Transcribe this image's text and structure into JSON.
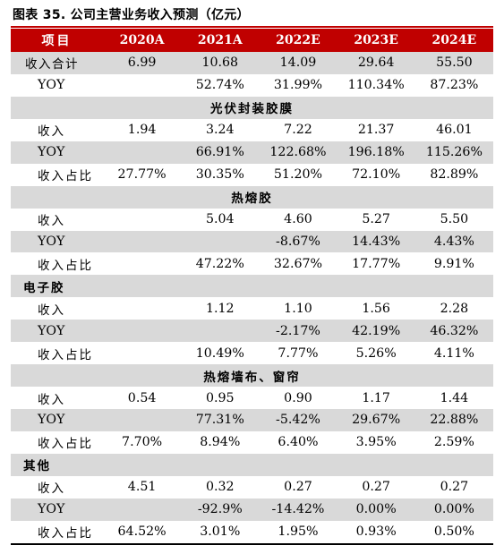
{
  "caption": "图表 35. 公司主营业务收入预测（亿元）",
  "header": [
    "项目",
    "2020A",
    "2021A",
    "2022E",
    "2023E",
    "2024E"
  ],
  "rows": [
    {
      "label": "收入合计",
      "values": [
        "6.99",
        "10.68",
        "14.09",
        "29.64",
        "55.50"
      ]
    },
    {
      "label": "YOY",
      "values": [
        "",
        "52.74%",
        "31.99%",
        "110.34%",
        "87.23%"
      ]
    },
    {
      "section": "光伏封装胶膜"
    },
    {
      "label": "收入",
      "values": [
        "1.94",
        "3.24",
        "7.22",
        "21.37",
        "46.01"
      ]
    },
    {
      "label": "YOY",
      "values": [
        "",
        "66.91%",
        "122.68%",
        "196.18%",
        "115.26%"
      ]
    },
    {
      "label": "收入占比",
      "values": [
        "27.77%",
        "30.35%",
        "51.20%",
        "72.10%",
        "82.89%"
      ]
    },
    {
      "section": "热熔胶"
    },
    {
      "label": "收入",
      "values": [
        "",
        "5.04",
        "4.60",
        "5.27",
        "5.50"
      ]
    },
    {
      "label": "YOY",
      "values": [
        "",
        "",
        "-8.67%",
        "14.43%",
        "4.43%"
      ]
    },
    {
      "label": "收入占比",
      "values": [
        "",
        "47.22%",
        "32.67%",
        "17.77%",
        "9.91%"
      ]
    },
    {
      "section": "电子胶"
    },
    {
      "label": "收入",
      "values": [
        "",
        "1.12",
        "1.10",
        "1.56",
        "2.28"
      ]
    },
    {
      "label": "YOY",
      "values": [
        "",
        "",
        "-2.17%",
        "42.19%",
        "46.32%"
      ]
    },
    {
      "label": "收入占比",
      "values": [
        "",
        "10.49%",
        "7.77%",
        "5.26%",
        "4.11%"
      ]
    },
    {
      "section": "热熔墙布、窗帘"
    },
    {
      "label": "收入",
      "values": [
        "0.54",
        "0.95",
        "0.90",
        "1.17",
        "1.44"
      ]
    },
    {
      "label": "YOY",
      "values": [
        "",
        "77.31%",
        "-5.42%",
        "29.67%",
        "22.88%"
      ]
    },
    {
      "label": "收入占比",
      "values": [
        "7.70%",
        "8.94%",
        "6.40%",
        "3.95%",
        "2.59%"
      ]
    },
    {
      "section": "其他"
    },
    {
      "label": "收入",
      "values": [
        "4.51",
        "0.32",
        "0.27",
        "0.27",
        "0.27"
      ]
    },
    {
      "label": "YOY",
      "values": [
        "",
        "-92.9%",
        "-14.42%",
        "0.00%",
        "0.00%"
      ]
    },
    {
      "label": "收入占比",
      "values": [
        "64.52%",
        "3.01%",
        "1.95%",
        "0.93%",
        "0.50%"
      ]
    }
  ]
}
